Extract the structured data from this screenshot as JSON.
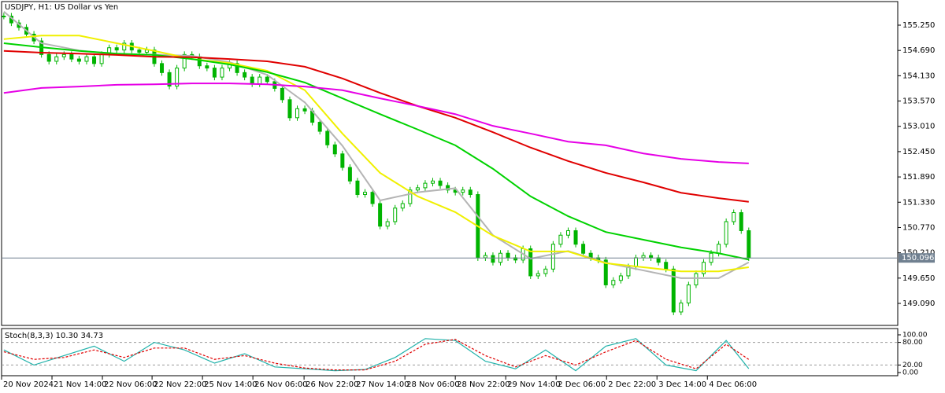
{
  "chart_data": {
    "type": "candlestick",
    "title": "USDJPY, H1:  US Dollar vs Yen",
    "candle_color": "#00b400",
    "closes": [
      155.45,
      155.3,
      155.2,
      155.05,
      154.9,
      154.6,
      154.45,
      154.55,
      154.6,
      154.5,
      154.45,
      154.55,
      154.4,
      154.6,
      154.75,
      154.7,
      154.85,
      154.7,
      154.65,
      154.7,
      154.4,
      154.2,
      153.9,
      154.3,
      154.6,
      154.55,
      154.35,
      154.3,
      154.1,
      154.3,
      154.4,
      154.2,
      154.1,
      153.95,
      154.1,
      154.0,
      153.85,
      153.6,
      153.2,
      153.4,
      153.35,
      153.1,
      152.9,
      152.6,
      152.4,
      152.1,
      151.8,
      151.5,
      151.55,
      151.3,
      150.8,
      150.9,
      151.2,
      151.3,
      151.6,
      151.65,
      151.75,
      151.8,
      151.7,
      151.6,
      151.55,
      151.6,
      151.5,
      150.1,
      150.15,
      150.0,
      150.2,
      150.1,
      150.05,
      150.3,
      149.7,
      149.75,
      149.85,
      150.4,
      150.6,
      150.7,
      150.4,
      150.2,
      150.1,
      150.05,
      149.5,
      149.6,
      149.7,
      149.9,
      150.1,
      150.15,
      150.1,
      150.0,
      149.85,
      148.9,
      149.1,
      149.5,
      149.75,
      150.0,
      150.2,
      150.4,
      150.9,
      151.1,
      150.7,
      150.1
    ],
    "xlim": [
      -0.3,
      118.8
    ],
    "ylim": [
      148.603,
      155.772
    ],
    "yticks": [
      {
        "value": 155.25,
        "label": "155.250"
      },
      {
        "value": 154.69,
        "label": "154.690"
      },
      {
        "value": 154.13,
        "label": "154.130"
      },
      {
        "value": 153.57,
        "label": "153.570"
      },
      {
        "value": 153.01,
        "label": "153.010"
      },
      {
        "value": 152.45,
        "label": "152.450"
      },
      {
        "value": 151.89,
        "label": "151.890"
      },
      {
        "value": 151.33,
        "label": "151.330"
      },
      {
        "value": 150.77,
        "label": "150.770"
      },
      {
        "value": 150.21,
        "label": "150.210"
      },
      {
        "value": 149.65,
        "label": "149.650"
      },
      {
        "value": 149.09,
        "label": "149.090"
      }
    ],
    "xticks": [
      {
        "value": -0.3,
        "label": "20 Nov 2024"
      },
      {
        "value": 6.4,
        "label": "21 Nov 14:00"
      },
      {
        "value": 13.1,
        "label": "22 Nov 06:00"
      },
      {
        "value": 19.7,
        "label": "22 Nov 22:00"
      },
      {
        "value": 26.4,
        "label": "25 Nov 14:00"
      },
      {
        "value": 33.1,
        "label": "26 Nov 06:00"
      },
      {
        "value": 39.9,
        "label": "26 Nov 22:00"
      },
      {
        "value": 46.6,
        "label": "27 Nov 14:00"
      },
      {
        "value": 53.3,
        "label": "28 Nov 06:00"
      },
      {
        "value": 60,
        "label": "28 Nov 22:00"
      },
      {
        "value": 66.7,
        "label": "29 Nov 14:00"
      },
      {
        "value": 73.4,
        "label": "2 Dec 06:00"
      },
      {
        "value": 80.1,
        "label": "2 Dec 22:00"
      },
      {
        "value": 86.8,
        "label": "3 Dec 14:00"
      },
      {
        "value": 93.5,
        "label": "4 Dec 06:00"
      }
    ],
    "last_price": 150.096,
    "moving_averages": {
      "x": [
        0,
        5,
        10,
        15,
        20,
        25,
        30,
        35,
        40,
        45,
        50,
        55,
        60,
        65,
        70,
        75,
        80,
        85,
        90,
        95,
        99
      ],
      "series": [
        {
          "color": "#b4b4b4",
          "values": [
            155.55,
            154.85,
            154.69,
            154.6,
            154.6,
            154.57,
            154.43,
            154.15,
            153.54,
            152.58,
            151.37,
            151.55,
            151.64,
            150.6,
            150.08,
            150.25,
            149.99,
            149.82,
            149.65,
            149.65,
            150.0
          ]
        },
        {
          "color": "#f0f000",
          "values": [
            154.94,
            155.02,
            155.02,
            154.85,
            154.68,
            154.5,
            154.41,
            154.24,
            153.81,
            152.85,
            151.98,
            151.46,
            151.11,
            150.59,
            150.24,
            150.24,
            149.98,
            149.89,
            149.8,
            149.8,
            149.89
          ]
        },
        {
          "color": "#00d200",
          "values": [
            154.85,
            154.76,
            154.68,
            154.62,
            154.59,
            154.5,
            154.38,
            154.21,
            153.98,
            153.63,
            153.28,
            152.94,
            152.59,
            152.07,
            151.46,
            151.02,
            150.67,
            150.5,
            150.33,
            150.2,
            150.06
          ]
        },
        {
          "color": "#e00000",
          "values": [
            154.68,
            154.64,
            154.62,
            154.59,
            154.55,
            154.54,
            154.5,
            154.45,
            154.33,
            154.07,
            153.75,
            153.46,
            153.2,
            152.88,
            152.54,
            152.24,
            151.98,
            151.77,
            151.54,
            151.42,
            151.34
          ]
        },
        {
          "color": "#e600e6",
          "values": [
            153.75,
            153.86,
            153.89,
            153.93,
            153.94,
            153.96,
            153.96,
            153.94,
            153.89,
            153.81,
            153.63,
            153.46,
            153.28,
            153.02,
            152.85,
            152.67,
            152.59,
            152.41,
            152.29,
            152.22,
            152.19
          ]
        }
      ]
    },
    "stochastic": {
      "label": "Stoch(8,3,3) 10.30 34.73",
      "x": [
        0,
        4,
        8,
        12,
        16,
        20,
        24,
        28,
        32,
        36,
        40,
        44,
        48,
        52,
        56,
        60,
        64,
        68,
        72,
        76,
        80,
        84,
        88,
        92,
        96,
        99
      ],
      "ylim": [
        0,
        100
      ],
      "yticks": [
        {
          "value": 100,
          "label": "100.00"
        },
        {
          "value": 80,
          "label": "80.00"
        },
        {
          "value": 20,
          "label": "20.00"
        },
        {
          "value": 0,
          "label": "0.00"
        }
      ],
      "k": {
        "color": "#20b2aa",
        "values": [
          60,
          20,
          45,
          70,
          30,
          80,
          60,
          25,
          50,
          15,
          10,
          5,
          8,
          40,
          90,
          85,
          30,
          10,
          60,
          5,
          70,
          90,
          20,
          5,
          85,
          10.3
        ]
      },
      "d": {
        "color": "#e00000",
        "values": [
          55,
          35,
          40,
          60,
          40,
          65,
          65,
          35,
          45,
          25,
          12,
          7,
          7,
          30,
          75,
          88,
          45,
          15,
          45,
          20,
          55,
          85,
          35,
          10,
          75,
          34.73
        ]
      }
    }
  }
}
